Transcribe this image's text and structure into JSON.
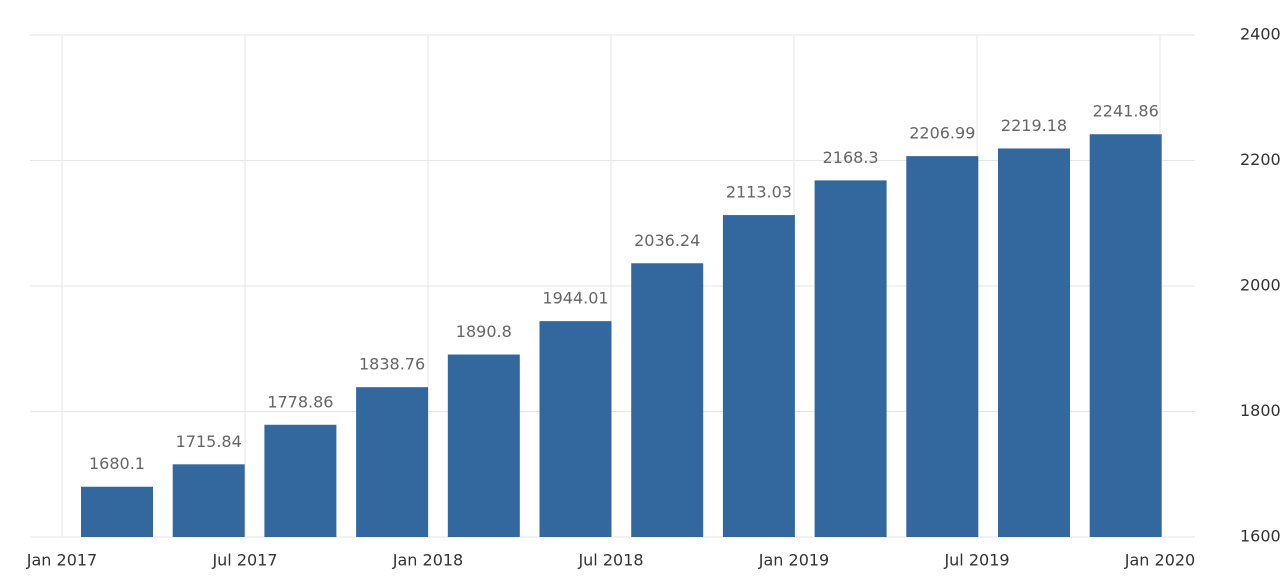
{
  "chart_data": {
    "type": "bar",
    "categories": [
      null,
      null,
      null,
      null,
      null,
      null,
      null,
      null,
      null,
      null,
      null,
      null
    ],
    "values": [
      1680.1,
      1715.84,
      1778.86,
      1838.76,
      1890.8,
      1944.01,
      2036.24,
      2113.03,
      2168.3,
      2206.99,
      2219.18,
      2241.86
    ],
    "color": "#33689f",
    "xticks": [
      "Jan 2017",
      "Jul 2017",
      "Jan 2018",
      "Jul 2018",
      "Jan 2019",
      "Jul 2019",
      "Jan 2020"
    ],
    "ylim": [
      1600,
      2400
    ],
    "yticks": [
      1600,
      1800,
      2000,
      2200,
      2400
    ],
    "y_axis_side": "right",
    "grid": true
  }
}
